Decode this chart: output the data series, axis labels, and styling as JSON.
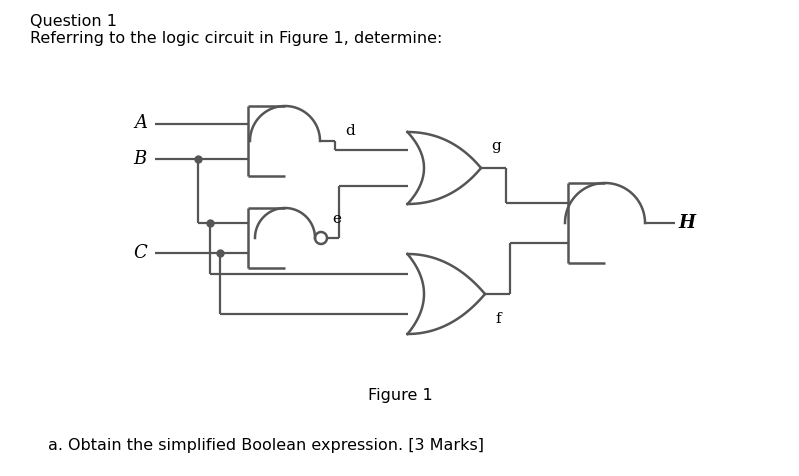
{
  "bg_color": "#ffffff",
  "gc": "#555555",
  "lw": 1.8,
  "wlw": 1.6,
  "title1": "Question 1",
  "title2": "Referring to the logic circuit in Figure 1, determine:",
  "fig_caption": "Figure 1",
  "label_bullet": "a.",
  "label_bottom": "Obtain the simplified Boolean expression. [3 Marks]",
  "label_A": "A",
  "label_B": "B",
  "label_C": "C",
  "label_d": "d",
  "label_e": "e",
  "label_g": "g",
  "label_f": "f",
  "label_H": "H",
  "font_title": 11.5,
  "font_gate": 11,
  "font_label": 13
}
